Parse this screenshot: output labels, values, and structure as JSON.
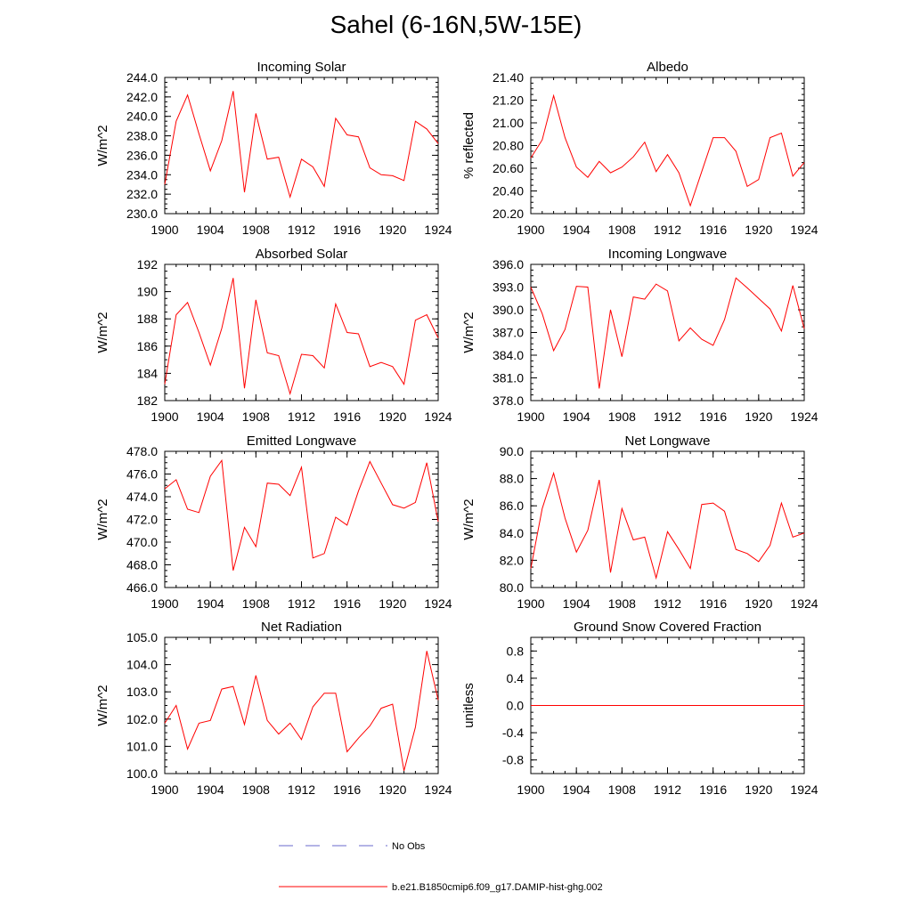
{
  "figure": {
    "title": "Sahel (6-16N,5W-15E)"
  },
  "colors": {
    "model_line": "#ff0000",
    "obs_line": "#6a6acd",
    "axis": "#000000"
  },
  "legend": {
    "placement": "bottom-center",
    "items": [
      {
        "label": "No Obs",
        "style": "dashed",
        "color": "#6a6acd"
      },
      {
        "label": "b.e21.B1850cmip6.f09_g17.DAMIP-hist-ghg.002",
        "style": "solid",
        "color": "#ff0000"
      }
    ]
  },
  "chart_data": [
    {
      "type": "line",
      "title": "Incoming Solar",
      "ylabel": "W/m^2",
      "xlim": [
        1900,
        1924
      ],
      "ylim": [
        230,
        244
      ],
      "yticks": [
        230,
        232,
        234,
        236,
        238,
        240,
        242,
        244
      ],
      "ytick_labels": [
        "230.0",
        "232.0",
        "234.0",
        "236.0",
        "238.0",
        "240.0",
        "242.0",
        "244.0"
      ],
      "xticks": [
        1900,
        1904,
        1908,
        1912,
        1916,
        1920,
        1924
      ],
      "series": [
        {
          "x": [
            1900,
            1901,
            1902,
            1903,
            1904,
            1905,
            1906,
            1907,
            1908,
            1909,
            1910,
            1911,
            1912,
            1913,
            1914,
            1915,
            1916,
            1917,
            1918,
            1919,
            1920,
            1921,
            1922,
            1923,
            1924
          ],
          "values": [
            233.0,
            239.5,
            242.2,
            238.2,
            234.4,
            237.5,
            242.6,
            232.2,
            240.3,
            235.6,
            235.8,
            231.7,
            235.6,
            234.8,
            232.8,
            239.8,
            238.1,
            237.9,
            234.7,
            234.0,
            233.9,
            233.4,
            239.5,
            238.7,
            237.2
          ]
        }
      ]
    },
    {
      "type": "line",
      "title": "Albedo",
      "ylabel": "% reflected",
      "xlim": [
        1900,
        1924
      ],
      "ylim": [
        20.2,
        21.4
      ],
      "yticks": [
        20.2,
        20.4,
        20.6,
        20.8,
        21.0,
        21.2,
        21.4
      ],
      "ytick_labels": [
        "20.20",
        "20.40",
        "20.60",
        "20.80",
        "21.00",
        "21.20",
        "21.40"
      ],
      "xticks": [
        1900,
        1904,
        1908,
        1912,
        1916,
        1920,
        1924
      ],
      "series": [
        {
          "x": [
            1900,
            1901,
            1902,
            1903,
            1904,
            1905,
            1906,
            1907,
            1908,
            1909,
            1910,
            1911,
            1912,
            1913,
            1914,
            1915,
            1916,
            1917,
            1918,
            1919,
            1920,
            1921,
            1922,
            1923,
            1924
          ],
          "values": [
            20.69,
            20.85,
            21.24,
            20.87,
            20.61,
            20.52,
            20.66,
            20.56,
            20.61,
            20.7,
            20.83,
            20.57,
            20.72,
            20.56,
            20.27,
            20.57,
            20.87,
            20.87,
            20.75,
            20.44,
            20.5,
            20.87,
            20.91,
            20.53,
            20.65
          ]
        }
      ]
    },
    {
      "type": "line",
      "title": "Absorbed Solar",
      "ylabel": "W/m^2",
      "xlim": [
        1900,
        1924
      ],
      "ylim": [
        182,
        192
      ],
      "yticks": [
        182,
        184,
        186,
        188,
        190,
        192
      ],
      "ytick_labels": [
        "182",
        "184",
        "186",
        "188",
        "190",
        "192"
      ],
      "xticks": [
        1900,
        1904,
        1908,
        1912,
        1916,
        1920,
        1924
      ],
      "series": [
        {
          "x": [
            1900,
            1901,
            1902,
            1903,
            1904,
            1905,
            1906,
            1907,
            1908,
            1909,
            1910,
            1911,
            1912,
            1913,
            1914,
            1915,
            1916,
            1917,
            1918,
            1919,
            1920,
            1921,
            1922,
            1923,
            1924
          ],
          "values": [
            183.2,
            188.3,
            189.2,
            187.0,
            184.6,
            187.3,
            191.0,
            182.9,
            189.4,
            185.5,
            185.3,
            182.5,
            185.4,
            185.3,
            184.4,
            189.1,
            187.0,
            186.9,
            184.5,
            184.8,
            184.5,
            183.2,
            187.9,
            188.3,
            186.6
          ]
        }
      ]
    },
    {
      "type": "line",
      "title": "Incoming Longwave",
      "ylabel": "W/m^2",
      "xlim": [
        1900,
        1924
      ],
      "ylim": [
        378,
        396
      ],
      "yticks": [
        378,
        381,
        384,
        387,
        390,
        393,
        396
      ],
      "ytick_labels": [
        "378.0",
        "381.0",
        "384.0",
        "387.0",
        "390.0",
        "393.0",
        "396.0"
      ],
      "xticks": [
        1900,
        1904,
        1908,
        1912,
        1916,
        1920,
        1924
      ],
      "series": [
        {
          "x": [
            1900,
            1901,
            1902,
            1903,
            1904,
            1905,
            1906,
            1907,
            1908,
            1909,
            1910,
            1911,
            1912,
            1913,
            1914,
            1915,
            1916,
            1917,
            1918,
            1919,
            1920,
            1921,
            1922,
            1923,
            1924
          ],
          "values": [
            393.0,
            389.5,
            384.6,
            387.4,
            393.1,
            393.0,
            379.6,
            390.0,
            383.8,
            391.7,
            391.4,
            393.4,
            392.5,
            385.9,
            387.6,
            386.1,
            385.3,
            388.7,
            394.2,
            392.9,
            391.5,
            390.1,
            387.2,
            393.2,
            387.5
          ]
        }
      ]
    },
    {
      "type": "line",
      "title": "Emitted Longwave",
      "ylabel": "W/m^2",
      "xlim": [
        1900,
        1924
      ],
      "ylim": [
        466,
        478
      ],
      "yticks": [
        466,
        468,
        470,
        472,
        474,
        476,
        478
      ],
      "ytick_labels": [
        "466.0",
        "468.0",
        "470.0",
        "472.0",
        "474.0",
        "476.0",
        "478.0"
      ],
      "xticks": [
        1900,
        1904,
        1908,
        1912,
        1916,
        1920,
        1924
      ],
      "series": [
        {
          "x": [
            1900,
            1901,
            1902,
            1903,
            1904,
            1905,
            1906,
            1907,
            1908,
            1909,
            1910,
            1911,
            1912,
            1913,
            1914,
            1915,
            1916,
            1917,
            1918,
            1919,
            1920,
            1921,
            1922,
            1923,
            1924
          ],
          "values": [
            474.7,
            475.5,
            472.9,
            472.6,
            475.8,
            477.2,
            467.5,
            471.3,
            469.6,
            475.2,
            475.1,
            474.1,
            476.6,
            468.6,
            469.0,
            472.2,
            471.5,
            474.5,
            477.1,
            475.2,
            473.3,
            473.0,
            473.5,
            477.0,
            471.8
          ]
        }
      ]
    },
    {
      "type": "line",
      "title": "Net Longwave",
      "ylabel": "W/m^2",
      "xlim": [
        1900,
        1924
      ],
      "ylim": [
        80,
        90
      ],
      "yticks": [
        80,
        82,
        84,
        86,
        88,
        90
      ],
      "ytick_labels": [
        "80.0",
        "82.0",
        "84.0",
        "86.0",
        "88.0",
        "90.0"
      ],
      "xticks": [
        1900,
        1904,
        1908,
        1912,
        1916,
        1920,
        1924
      ],
      "series": [
        {
          "x": [
            1900,
            1901,
            1902,
            1903,
            1904,
            1905,
            1906,
            1907,
            1908,
            1909,
            1910,
            1911,
            1912,
            1913,
            1914,
            1915,
            1916,
            1917,
            1918,
            1919,
            1920,
            1921,
            1922,
            1923,
            1924
          ],
          "values": [
            81.4,
            85.8,
            88.4,
            85.1,
            82.6,
            84.2,
            87.9,
            81.1,
            85.8,
            83.5,
            83.7,
            80.7,
            84.1,
            82.8,
            81.4,
            86.1,
            86.2,
            85.6,
            82.8,
            82.5,
            81.9,
            83.1,
            86.2,
            83.7,
            84.0
          ]
        }
      ]
    },
    {
      "type": "line",
      "title": "Net Radiation",
      "ylabel": "W/m^2",
      "xlim": [
        1900,
        1924
      ],
      "ylim": [
        100,
        105
      ],
      "yticks": [
        100,
        101,
        102,
        103,
        104,
        105
      ],
      "ytick_labels": [
        "100.0",
        "101.0",
        "102.0",
        "103.0",
        "104.0",
        "105.0"
      ],
      "xticks": [
        1900,
        1904,
        1908,
        1912,
        1916,
        1920,
        1924
      ],
      "series": [
        {
          "x": [
            1900,
            1901,
            1902,
            1903,
            1904,
            1905,
            1906,
            1907,
            1908,
            1909,
            1910,
            1911,
            1912,
            1913,
            1914,
            1915,
            1916,
            1917,
            1918,
            1919,
            1920,
            1921,
            1922,
            1923,
            1924
          ],
          "values": [
            101.85,
            102.5,
            100.9,
            101.85,
            101.95,
            103.1,
            103.2,
            101.8,
            103.6,
            101.95,
            101.45,
            101.85,
            101.25,
            102.45,
            102.95,
            102.95,
            100.8,
            101.3,
            101.75,
            102.4,
            102.55,
            100.1,
            101.7,
            104.5,
            102.7
          ]
        }
      ]
    },
    {
      "type": "line",
      "title": "Ground Snow Covered Fraction",
      "ylabel": "unitless",
      "xlim": [
        1900,
        1924
      ],
      "ylim": [
        -1,
        1
      ],
      "yticks": [
        -0.8,
        -0.4,
        0.0,
        0.4,
        0.8
      ],
      "ytick_labels": [
        "-0.8",
        "-0.4",
        "0.0",
        "0.4",
        "0.8"
      ],
      "xticks": [
        1900,
        1904,
        1908,
        1912,
        1916,
        1920,
        1924
      ],
      "series": [
        {
          "x": [
            1900,
            1901,
            1902,
            1903,
            1904,
            1905,
            1906,
            1907,
            1908,
            1909,
            1910,
            1911,
            1912,
            1913,
            1914,
            1915,
            1916,
            1917,
            1918,
            1919,
            1920,
            1921,
            1922,
            1923,
            1924
          ],
          "values": [
            0,
            0,
            0,
            0,
            0,
            0,
            0,
            0,
            0,
            0,
            0,
            0,
            0,
            0,
            0,
            0,
            0,
            0,
            0,
            0,
            0,
            0,
            0,
            0,
            0
          ]
        }
      ]
    }
  ]
}
